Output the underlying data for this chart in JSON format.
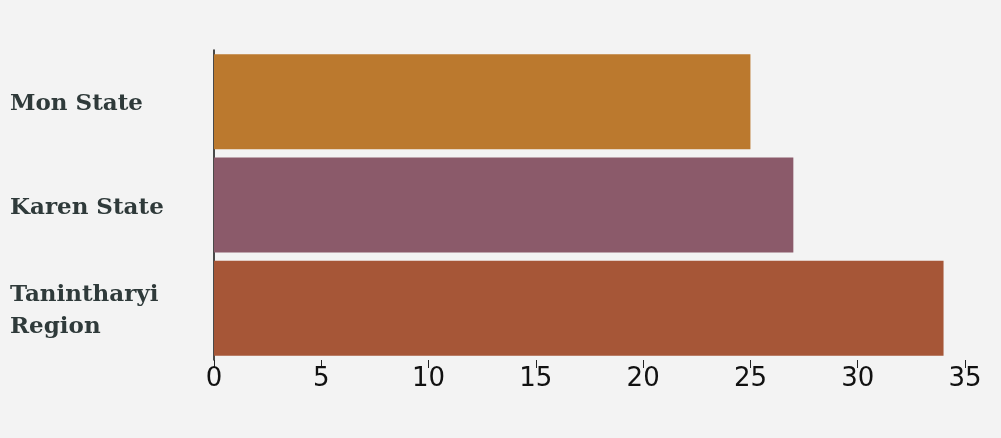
{
  "chart_data": {
    "type": "bar",
    "orientation": "horizontal",
    "categories": [
      "Mon State",
      "Karen State",
      "Tanintharyi Region"
    ],
    "values": [
      25,
      27,
      34
    ],
    "colors": [
      "#bb792e",
      "#8b5a6a",
      "#a65637"
    ],
    "xlim": [
      0,
      35
    ],
    "xticks": [
      0,
      5,
      10,
      15,
      20,
      25,
      30,
      35
    ],
    "grid": false
  }
}
